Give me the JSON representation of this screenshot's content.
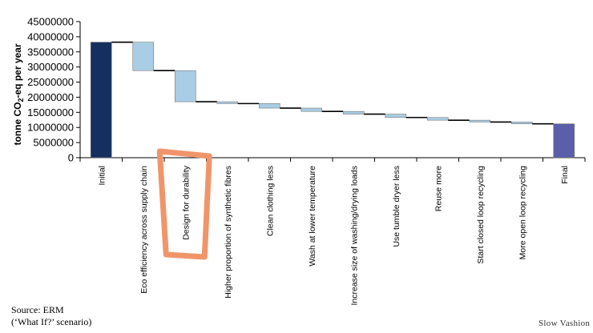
{
  "chart_data": {
    "type": "waterfall",
    "ylabel_parts": [
      "tonne CO",
      "2",
      "-eq per year"
    ],
    "ylim": [
      0,
      45000000
    ],
    "yticks": [
      0,
      5000000,
      10000000,
      15000000,
      20000000,
      25000000,
      30000000,
      35000000,
      40000000,
      45000000
    ],
    "categories": [
      "Initial",
      "Eco efficiency across supply chain",
      "Design for durability",
      "Higher proportion of synthetic fibres",
      "Clean clothing less",
      "Wash at lower temperature",
      "Increase size of washing/drying loads",
      "Use tumble dryer less",
      "Reuse more",
      "Start closed loop recycling",
      "More open loop recycling",
      "Final"
    ],
    "bars": [
      {
        "kind": "total",
        "low": 0,
        "high": 38200000
      },
      {
        "kind": "step",
        "low": 28800000,
        "high": 38200000
      },
      {
        "kind": "step",
        "low": 18500000,
        "high": 28800000
      },
      {
        "kind": "step",
        "low": 17900000,
        "high": 18500000
      },
      {
        "kind": "step",
        "low": 16400000,
        "high": 17900000
      },
      {
        "kind": "step",
        "low": 15300000,
        "high": 16400000
      },
      {
        "kind": "step",
        "low": 14400000,
        "high": 15300000
      },
      {
        "kind": "step",
        "low": 13300000,
        "high": 14400000
      },
      {
        "kind": "step",
        "low": 12400000,
        "high": 13300000
      },
      {
        "kind": "step",
        "low": 11800000,
        "high": 12400000
      },
      {
        "kind": "step",
        "low": 11200000,
        "high": 11800000
      },
      {
        "kind": "total",
        "low": 0,
        "high": 11200000
      }
    ],
    "highlighted_category": "Design for durability",
    "colors": {
      "initial": "#15305e",
      "step": "#a9cde4",
      "final": "#5b5ea8",
      "connector": "#000000",
      "highlight": "#f0956a"
    }
  },
  "source_note": {
    "line1": "Source: ERM",
    "line2": "(‘What If?’ scenario)"
  },
  "logo_text": "Slow Vashion"
}
